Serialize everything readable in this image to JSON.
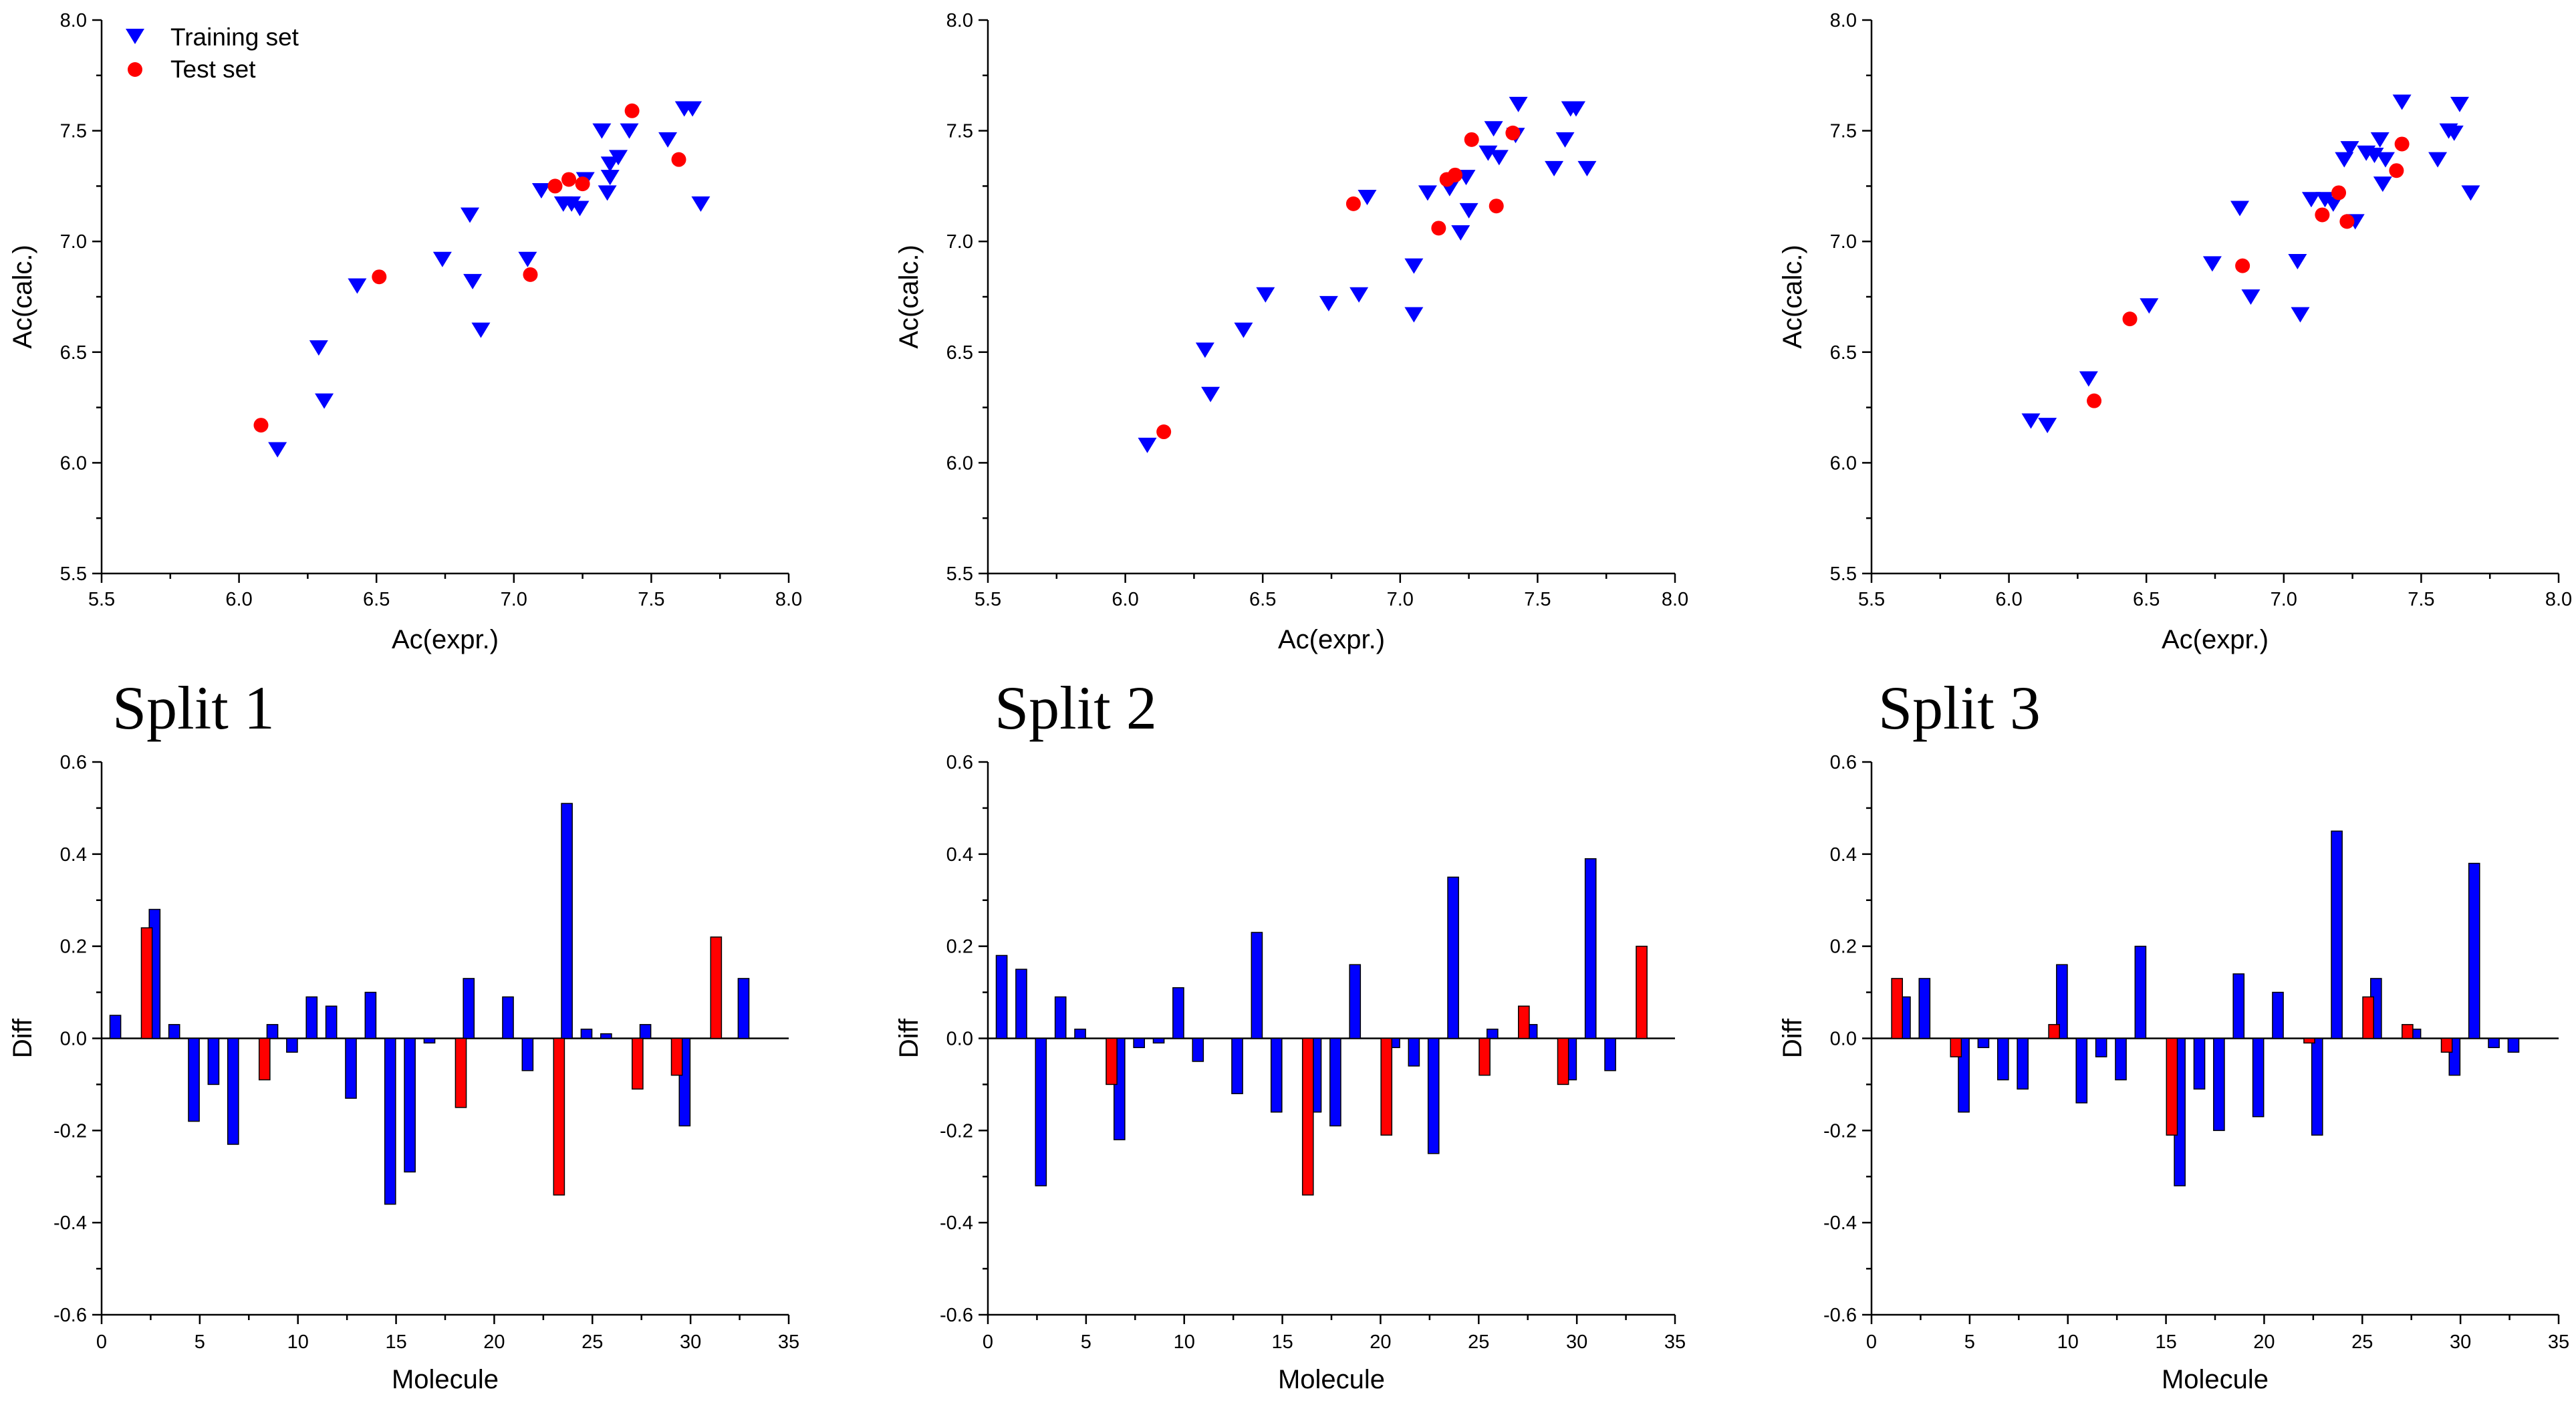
{
  "colors": {
    "training": "#0000ff",
    "test": "#ff0000",
    "axis": "#000000"
  },
  "legend": {
    "training_label": "Training set",
    "test_label": "Test set"
  },
  "splits": [
    {
      "title": "Split 1"
    },
    {
      "title": "Split 2"
    },
    {
      "title": "Split 3"
    }
  ],
  "chart_data": [
    {
      "type": "scatter",
      "panel": "split-1-scatter",
      "xlabel": "Ac(expr.)",
      "ylabel": "Ac(calc.)",
      "xlim": [
        5.5,
        8.0
      ],
      "ylim": [
        5.5,
        8.0
      ],
      "xticks": [
        "5.5",
        "6.0",
        "6.5",
        "7.0",
        "7.5",
        "8.0"
      ],
      "yticks": [
        "5.5",
        "6.0",
        "6.5",
        "7.0",
        "7.5",
        "8.0"
      ],
      "show_legend": true,
      "series": [
        {
          "name": "Training set",
          "marker": "triangle-down",
          "points": [
            [
              6.14,
              6.06
            ],
            [
              6.29,
              6.52
            ],
            [
              6.31,
              6.28
            ],
            [
              6.43,
              6.8
            ],
            [
              6.74,
              6.92
            ],
            [
              6.84,
              7.12
            ],
            [
              6.85,
              6.82
            ],
            [
              6.88,
              6.6
            ],
            [
              7.05,
              6.92
            ],
            [
              7.1,
              7.23
            ],
            [
              7.18,
              7.17
            ],
            [
              7.21,
              7.17
            ],
            [
              7.24,
              7.15
            ],
            [
              7.26,
              7.28
            ],
            [
              7.32,
              7.5
            ],
            [
              7.34,
              7.22
            ],
            [
              7.35,
              7.29
            ],
            [
              7.35,
              7.35
            ],
            [
              7.38,
              7.38
            ],
            [
              7.42,
              7.5
            ],
            [
              7.56,
              7.46
            ],
            [
              7.62,
              7.6
            ],
            [
              7.65,
              7.6
            ],
            [
              7.68,
              7.17
            ]
          ]
        },
        {
          "name": "Test set",
          "marker": "circle",
          "points": [
            [
              6.08,
              6.17
            ],
            [
              6.51,
              6.84
            ],
            [
              7.06,
              6.85
            ],
            [
              7.15,
              7.25
            ],
            [
              7.2,
              7.28
            ],
            [
              7.25,
              7.26
            ],
            [
              7.43,
              7.59
            ],
            [
              7.6,
              7.37
            ]
          ]
        }
      ]
    },
    {
      "type": "scatter",
      "panel": "split-2-scatter",
      "xlabel": "Ac(expr.)",
      "ylabel": "Ac(calc.)",
      "xlim": [
        5.5,
        8.0
      ],
      "ylim": [
        5.5,
        8.0
      ],
      "xticks": [
        "5.5",
        "6.0",
        "6.5",
        "7.0",
        "7.5",
        "8.0"
      ],
      "yticks": [
        "5.5",
        "6.0",
        "6.5",
        "7.0",
        "7.5",
        "8.0"
      ],
      "show_legend": false,
      "series": [
        {
          "name": "Training set",
          "marker": "triangle-down",
          "points": [
            [
              6.08,
              6.08
            ],
            [
              6.29,
              6.51
            ],
            [
              6.31,
              6.31
            ],
            [
              6.43,
              6.6
            ],
            [
              6.51,
              6.76
            ],
            [
              6.74,
              6.72
            ],
            [
              6.85,
              6.76
            ],
            [
              6.88,
              7.2
            ],
            [
              7.05,
              6.89
            ],
            [
              7.05,
              6.67
            ],
            [
              7.1,
              7.22
            ],
            [
              7.18,
              7.24
            ],
            [
              7.22,
              7.04
            ],
            [
              7.24,
              7.29
            ],
            [
              7.25,
              7.14
            ],
            [
              7.32,
              7.4
            ],
            [
              7.34,
              7.51
            ],
            [
              7.36,
              7.38
            ],
            [
              7.42,
              7.48
            ],
            [
              7.43,
              7.62
            ],
            [
              7.56,
              7.33
            ],
            [
              7.6,
              7.46
            ],
            [
              7.62,
              7.6
            ],
            [
              7.64,
              7.6
            ],
            [
              7.68,
              7.33
            ]
          ]
        },
        {
          "name": "Test set",
          "marker": "circle",
          "points": [
            [
              6.14,
              6.14
            ],
            [
              6.83,
              7.17
            ],
            [
              7.14,
              7.06
            ],
            [
              7.17,
              7.28
            ],
            [
              7.2,
              7.3
            ],
            [
              7.26,
              7.46
            ],
            [
              7.35,
              7.16
            ],
            [
              7.41,
              7.49
            ]
          ]
        }
      ]
    },
    {
      "type": "scatter",
      "panel": "split-3-scatter",
      "xlabel": "Ac(expr.)",
      "ylabel": "Ac(calc.)",
      "xlim": [
        5.5,
        8.0
      ],
      "ylim": [
        5.5,
        8.0
      ],
      "xticks": [
        "5.5",
        "6.0",
        "6.5",
        "7.0",
        "7.5",
        "8.0"
      ],
      "yticks": [
        "5.5",
        "6.0",
        "6.5",
        "7.0",
        "7.5",
        "8.0"
      ],
      "show_legend": false,
      "series": [
        {
          "name": "Training set",
          "marker": "triangle-down",
          "points": [
            [
              6.08,
              6.19
            ],
            [
              6.14,
              6.17
            ],
            [
              6.29,
              6.38
            ],
            [
              6.51,
              6.71
            ],
            [
              6.74,
              6.9
            ],
            [
              6.84,
              7.15
            ],
            [
              6.88,
              6.75
            ],
            [
              7.05,
              6.91
            ],
            [
              7.06,
              6.67
            ],
            [
              7.1,
              7.19
            ],
            [
              7.15,
              7.19
            ],
            [
              7.18,
              7.17
            ],
            [
              7.22,
              7.37
            ],
            [
              7.24,
              7.42
            ],
            [
              7.26,
              7.09
            ],
            [
              7.3,
              7.4
            ],
            [
              7.33,
              7.39
            ],
            [
              7.35,
              7.46
            ],
            [
              7.36,
              7.26
            ],
            [
              7.37,
              7.37
            ],
            [
              7.43,
              7.63
            ],
            [
              7.56,
              7.37
            ],
            [
              7.6,
              7.5
            ],
            [
              7.62,
              7.49
            ],
            [
              7.64,
              7.62
            ],
            [
              7.68,
              7.22
            ]
          ]
        },
        {
          "name": "Test set",
          "marker": "circle",
          "points": [
            [
              6.31,
              6.28
            ],
            [
              6.44,
              6.65
            ],
            [
              6.85,
              6.89
            ],
            [
              7.14,
              7.12
            ],
            [
              7.2,
              7.22
            ],
            [
              7.23,
              7.09
            ],
            [
              7.41,
              7.32
            ],
            [
              7.43,
              7.44
            ]
          ]
        }
      ]
    },
    {
      "type": "bar",
      "panel": "split-1-diff",
      "xlabel": "Molecule",
      "ylabel": "Diff",
      "xlim": [
        0,
        35
      ],
      "ylim": [
        -0.6,
        0.6
      ],
      "xticks": [
        "0",
        "5",
        "10",
        "15",
        "20",
        "25",
        "30",
        "35"
      ],
      "yticks": [
        "-0.6",
        "-0.4",
        "-0.2",
        "0.0",
        "0.2",
        "0.4",
        "0.6"
      ],
      "bar_width": 0.55,
      "series": [
        {
          "name": "Training set",
          "points": [
            [
              0.7,
              0.05
            ],
            [
              2.7,
              0.28
            ],
            [
              3.7,
              0.03
            ],
            [
              4.7,
              -0.18
            ],
            [
              5.7,
              -0.1
            ],
            [
              6.7,
              -0.23
            ],
            [
              8.7,
              0.03
            ],
            [
              9.7,
              -0.03
            ],
            [
              10.7,
              0.09
            ],
            [
              11.7,
              0.07
            ],
            [
              12.7,
              -0.13
            ],
            [
              13.7,
              0.1
            ],
            [
              14.7,
              -0.36
            ],
            [
              15.7,
              -0.29
            ],
            [
              16.7,
              -0.01
            ],
            [
              18.7,
              0.13
            ],
            [
              20.7,
              0.09
            ],
            [
              21.7,
              -0.07
            ],
            [
              23.7,
              0.51
            ],
            [
              24.7,
              0.02
            ],
            [
              25.7,
              0.01
            ],
            [
              27.7,
              0.03
            ],
            [
              29.7,
              -0.19
            ],
            [
              32.7,
              0.13
            ]
          ]
        },
        {
          "name": "Test set",
          "points": [
            [
              2.3,
              0.24
            ],
            [
              8.3,
              -0.09
            ],
            [
              18.3,
              -0.15
            ],
            [
              23.3,
              -0.34
            ],
            [
              27.3,
              -0.11
            ],
            [
              29.3,
              -0.08
            ],
            [
              31.3,
              0.22
            ]
          ]
        }
      ]
    },
    {
      "type": "bar",
      "panel": "split-2-diff",
      "xlabel": "Molecule",
      "ylabel": "Diff",
      "xlim": [
        0,
        35
      ],
      "ylim": [
        -0.6,
        0.6
      ],
      "xticks": [
        "0",
        "5",
        "10",
        "15",
        "20",
        "25",
        "30",
        "35"
      ],
      "yticks": [
        "-0.6",
        "-0.4",
        "-0.2",
        "0.0",
        "0.2",
        "0.4",
        "0.6"
      ],
      "bar_width": 0.55,
      "series": [
        {
          "name": "Training set",
          "points": [
            [
              0.7,
              0.18
            ],
            [
              1.7,
              0.15
            ],
            [
              2.7,
              -0.32
            ],
            [
              3.7,
              0.09
            ],
            [
              4.7,
              0.02
            ],
            [
              6.7,
              -0.22
            ],
            [
              7.7,
              -0.02
            ],
            [
              8.7,
              -0.01
            ],
            [
              9.7,
              0.11
            ],
            [
              10.7,
              -0.05
            ],
            [
              12.7,
              -0.12
            ],
            [
              13.7,
              0.23
            ],
            [
              14.7,
              -0.16
            ],
            [
              16.7,
              -0.16
            ],
            [
              17.7,
              -0.19
            ],
            [
              18.7,
              0.16
            ],
            [
              20.7,
              -0.02
            ],
            [
              21.7,
              -0.06
            ],
            [
              22.7,
              -0.25
            ],
            [
              23.7,
              0.35
            ],
            [
              25.7,
              0.02
            ],
            [
              27.7,
              0.03
            ],
            [
              29.7,
              -0.09
            ],
            [
              30.7,
              0.39
            ],
            [
              31.7,
              -0.07
            ]
          ]
        },
        {
          "name": "Test set",
          "points": [
            [
              6.3,
              -0.1
            ],
            [
              16.3,
              -0.34
            ],
            [
              20.3,
              -0.21
            ],
            [
              25.3,
              -0.08
            ],
            [
              27.3,
              0.07
            ],
            [
              29.3,
              -0.1
            ],
            [
              33.3,
              0.2
            ]
          ]
        }
      ]
    },
    {
      "type": "bar",
      "panel": "split-3-diff",
      "xlabel": "Molecule",
      "ylabel": "Diff",
      "xlim": [
        0,
        35
      ],
      "ylim": [
        -0.6,
        0.6
      ],
      "xticks": [
        "0",
        "5",
        "10",
        "15",
        "20",
        "25",
        "30",
        "35"
      ],
      "yticks": [
        "-0.6",
        "-0.4",
        "-0.2",
        "0.0",
        "0.2",
        "0.4",
        "0.6"
      ],
      "bar_width": 0.55,
      "series": [
        {
          "name": "Training set",
          "points": [
            [
              1.7,
              0.09
            ],
            [
              2.7,
              0.13
            ],
            [
              4.7,
              -0.16
            ],
            [
              5.7,
              -0.02
            ],
            [
              6.7,
              -0.09
            ],
            [
              7.7,
              -0.11
            ],
            [
              9.7,
              0.16
            ],
            [
              10.7,
              -0.14
            ],
            [
              11.7,
              -0.04
            ],
            [
              12.7,
              -0.09
            ],
            [
              13.7,
              0.2
            ],
            [
              15.7,
              -0.32
            ],
            [
              16.7,
              -0.11
            ],
            [
              17.7,
              -0.2
            ],
            [
              18.7,
              0.14
            ],
            [
              19.7,
              -0.17
            ],
            [
              20.7,
              0.1
            ],
            [
              22.7,
              -0.21
            ],
            [
              23.7,
              0.45
            ],
            [
              25.7,
              0.13
            ],
            [
              27.7,
              0.02
            ],
            [
              29.7,
              -0.08
            ],
            [
              30.7,
              0.38
            ],
            [
              31.7,
              -0.02
            ],
            [
              32.7,
              -0.03
            ]
          ]
        },
        {
          "name": "Test set",
          "points": [
            [
              1.3,
              0.13
            ],
            [
              4.3,
              -0.04
            ],
            [
              9.3,
              0.03
            ],
            [
              15.3,
              -0.21
            ],
            [
              22.3,
              -0.01
            ],
            [
              25.3,
              0.09
            ],
            [
              27.3,
              0.03
            ],
            [
              29.3,
              -0.03
            ]
          ]
        }
      ]
    }
  ]
}
